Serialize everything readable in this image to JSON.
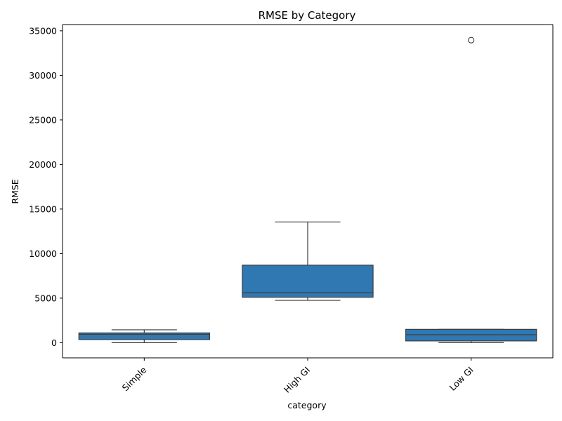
{
  "chart_data": {
    "type": "box",
    "title": "RMSE by Category",
    "xlabel": "category",
    "ylabel": "RMSE",
    "ylim": [
      -1700,
      35700
    ],
    "yticks": [
      0,
      5000,
      10000,
      15000,
      20000,
      25000,
      30000,
      35000
    ],
    "categories": [
      "Simple",
      "High GI",
      "Low GI"
    ],
    "boxes": [
      {
        "category": "Simple",
        "whisker_low": 0,
        "q1": 350,
        "median": 950,
        "q3": 1100,
        "whisker_high": 1450,
        "outliers": []
      },
      {
        "category": "High GI",
        "whisker_low": 4750,
        "q1": 5100,
        "median": 5600,
        "q3": 8700,
        "whisker_high": 13550,
        "outliers": []
      },
      {
        "category": "Low GI",
        "whisker_low": 0,
        "q1": 200,
        "median": 900,
        "q3": 1500,
        "whisker_high": 1500,
        "outliers": [
          33950
        ]
      }
    ],
    "box_color": "#2f78b2",
    "line_color": "#3d3d3d",
    "grid": false,
    "legend": "none",
    "x_tick_rotation": 45
  }
}
